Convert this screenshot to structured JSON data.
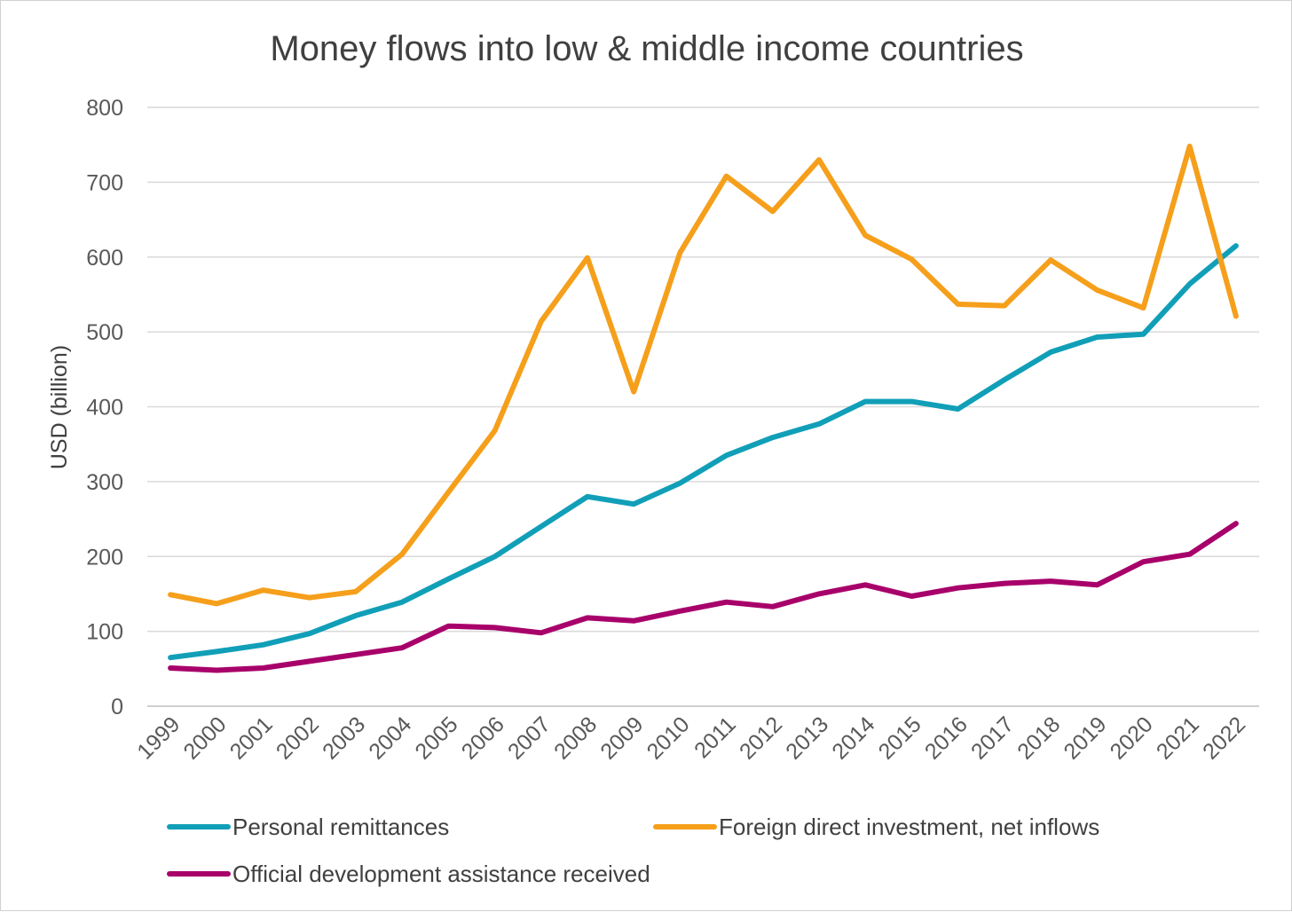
{
  "chart_data": {
    "type": "line",
    "title": "Money flows into low & middle income countries",
    "xlabel": "",
    "ylabel": "USD (billion)",
    "ylim": [
      0,
      800
    ],
    "yticks": [
      0,
      100,
      200,
      300,
      400,
      500,
      600,
      700,
      800
    ],
    "grid": true,
    "legend": "bottom",
    "x": [
      "1999",
      "2000",
      "2001",
      "2002",
      "2003",
      "2004",
      "2005",
      "2006",
      "2007",
      "2008",
      "2009",
      "2010",
      "2011",
      "2012",
      "2013",
      "2014",
      "2015",
      "2016",
      "2017",
      "2018",
      "2019",
      "2020",
      "2021",
      "2022"
    ],
    "series": [
      {
        "name": "Personal remittances",
        "color": "#119fb8",
        "values": [
          65,
          73,
          82,
          97,
          121,
          139,
          170,
          200,
          240,
          280,
          270,
          298,
          335,
          359,
          377,
          407,
          407,
          397,
          436,
          473,
          493,
          497,
          564,
          615
        ]
      },
      {
        "name": "Foreign direct investment, net inflows",
        "color": "#f59f1b",
        "values": [
          149,
          137,
          155,
          145,
          153,
          203,
          286,
          368,
          514,
          599,
          420,
          606,
          708,
          661,
          730,
          629,
          597,
          537,
          535,
          596,
          556,
          532,
          748,
          521
        ]
      },
      {
        "name": "Official development assistance received",
        "color": "#a8006a",
        "values": [
          51,
          48,
          51,
          60,
          69,
          78,
          107,
          105,
          98,
          118,
          114,
          127,
          139,
          133,
          150,
          162,
          147,
          158,
          164,
          167,
          162,
          193,
          203,
          244
        ]
      }
    ]
  }
}
